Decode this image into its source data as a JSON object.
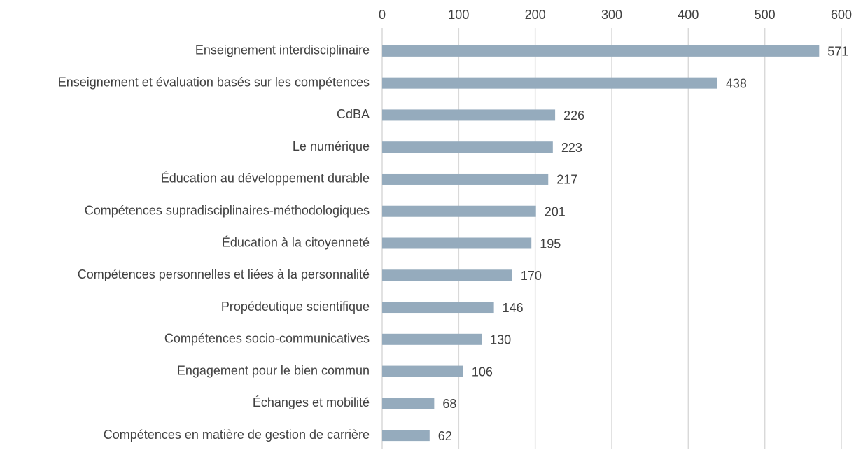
{
  "chart_data": {
    "type": "barh",
    "categories": [
      "Enseignement interdisciplinaire",
      "Enseignement et évaluation basés sur les compétences",
      "CdBA",
      "Le numérique",
      "Éducation au développement durable",
      "Compétences supradisciplinaires-méthodologiques",
      "Éducation à la citoyenneté",
      "Compétences personnelles et liées à la personnalité",
      "Propédeutique scientifique",
      "Compétences socio-communicatives",
      "Engagement pour le bien commun",
      "Échanges et mobilité",
      "Compétences en matière de gestion de carrière"
    ],
    "values": [
      571,
      438,
      226,
      223,
      217,
      201,
      195,
      170,
      146,
      130,
      106,
      68,
      62
    ],
    "color": "#95abbd",
    "xlim": [
      0,
      600
    ],
    "xticks": [
      0,
      100,
      200,
      300,
      400,
      500,
      600
    ],
    "grid": true
  }
}
